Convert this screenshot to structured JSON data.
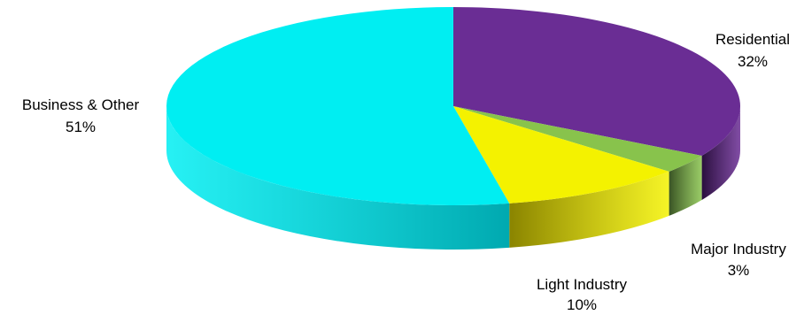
{
  "chart_data": {
    "type": "pie",
    "title": "",
    "style": "3d",
    "slices": [
      {
        "label": "Residential",
        "value": 32,
        "pct_label": "32%",
        "color": "#6a2d94",
        "side_color": "#2a0f3e"
      },
      {
        "label": "Major Industry",
        "value": 3,
        "pct_label": "3%",
        "color": "#88c34c",
        "side_color": "#3a5424"
      },
      {
        "label": "Light Industry",
        "value": 10,
        "pct_label": "10%",
        "color": "#f4f200",
        "side_color": "#8a8400"
      },
      {
        "label": "Business & Other",
        "value": 51,
        "pct_label": "51%",
        "color": "#00eef2",
        "side_color": "#00a9b0"
      }
    ]
  }
}
